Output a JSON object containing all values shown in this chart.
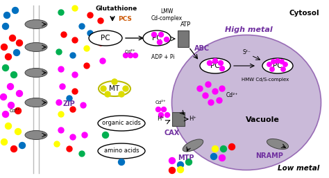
{
  "bg_color": "#f0f0f0",
  "cell_bg": "#ffffff",
  "vacuole_color": "#c5b3d5",
  "cytosol_label": "Cytosol",
  "high_metal_label": "High metal",
  "low_metal_label": "Low metal",
  "vacuole_label": "Vacuole",
  "zip_label": "ZIP",
  "zip_color": "#7030a0",
  "abc_label": "ABC",
  "abc_color": "#7030a0",
  "cax_label": "CAX",
  "cax_color": "#7030a0",
  "mtp_label": "MTP",
  "mtp_color": "#7030a0",
  "nramp_label": "NRAMP",
  "nramp_color": "#7030a0",
  "pcs_label": "PCS",
  "pcs_color": "#cc5500",
  "glutathione_label": "Glutathione",
  "atp_label": "ATP",
  "adppi_label": "ADP + Pi",
  "lmw_label": "LMW\nCd-complex",
  "hmw_label": "HMW Cd/S-complex",
  "s2_label": "S²⁻",
  "cd2_label": "Cd²⁺",
  "hplus_label": "H⁺",
  "hplus2_label": "H⁺",
  "organic_acids_label": "organic acids",
  "amino_acids_label": "amino acids",
  "mt_label": "MT",
  "pc_label": "PC",
  "transporter_color": "#707070",
  "membrane_color": "#999999",
  "outside_dots": [
    [
      10,
      22,
      "#0070c0"
    ],
    [
      22,
      15,
      "#0070c0"
    ],
    [
      8,
      38,
      "#0070c0"
    ],
    [
      18,
      55,
      "#ff0000"
    ],
    [
      6,
      68,
      "#ff0000"
    ],
    [
      28,
      62,
      "#ff0000"
    ],
    [
      12,
      82,
      "#ff0000"
    ],
    [
      24,
      76,
      "#0070c0"
    ],
    [
      8,
      98,
      "#00b050"
    ],
    [
      20,
      108,
      "#00b050"
    ],
    [
      15,
      125,
      "#ff00ff"
    ],
    [
      5,
      140,
      "#ff00ff"
    ],
    [
      28,
      135,
      "#ff00ff"
    ],
    [
      16,
      152,
      "#ff00ff"
    ],
    [
      8,
      165,
      "#ff00ff"
    ],
    [
      26,
      160,
      "#ff0000"
    ],
    [
      12,
      182,
      "#ffff00"
    ],
    [
      26,
      190,
      "#ffff00"
    ],
    [
      6,
      205,
      "#ffff00"
    ],
    [
      20,
      215,
      "#ff0000"
    ],
    [
      32,
      210,
      "#0070c0"
    ]
  ],
  "inside_dots": [
    [
      88,
      18,
      "#00b050"
    ],
    [
      108,
      12,
      "#ffff00"
    ],
    [
      130,
      22,
      "#ff0000"
    ],
    [
      118,
      38,
      "#0070c0"
    ],
    [
      92,
      50,
      "#ff0000"
    ],
    [
      108,
      58,
      "#ff0000"
    ],
    [
      130,
      48,
      "#0070c0"
    ],
    [
      145,
      30,
      "#ff0000"
    ],
    [
      85,
      75,
      "#00b050"
    ],
    [
      105,
      80,
      "#0070c0"
    ],
    [
      125,
      70,
      "#ffff00"
    ],
    [
      145,
      62,
      "#ff0000"
    ],
    [
      88,
      100,
      "#ff00ff"
    ],
    [
      108,
      108,
      "#ff00ff"
    ],
    [
      125,
      95,
      "#ff0000"
    ],
    [
      148,
      88,
      "#ff00ff"
    ],
    [
      90,
      125,
      "#ff00ff"
    ],
    [
      108,
      132,
      "#ff0000"
    ],
    [
      85,
      148,
      "#ff00ff"
    ],
    [
      100,
      142,
      "#0070c0"
    ],
    [
      88,
      165,
      "#ffff00"
    ],
    [
      105,
      158,
      "#ff0000"
    ],
    [
      120,
      152,
      "#ff00ff"
    ],
    [
      88,
      188,
      "#ff00ff"
    ],
    [
      105,
      198,
      "#ff00ff"
    ],
    [
      122,
      195,
      "#ff00ff"
    ],
    [
      82,
      208,
      "#ffff00"
    ],
    [
      100,
      215,
      "#ff0000"
    ],
    [
      118,
      222,
      "#00b050"
    ]
  ],
  "vacuole_low_dots": [
    [
      310,
      215,
      "#ffff00"
    ],
    [
      322,
      215,
      "#00b050"
    ],
    [
      334,
      212,
      "#ff0000"
    ],
    [
      308,
      226,
      "#0070c0"
    ],
    [
      320,
      228,
      "#ff00ff"
    ]
  ],
  "below_vacuole_dots": [
    [
      248,
      232,
      "#ff00ff"
    ],
    [
      260,
      238,
      "#0070c0"
    ],
    [
      272,
      234,
      "#00b050"
    ],
    [
      248,
      246,
      "#ff0000"
    ],
    [
      260,
      245,
      "#ffff00"
    ]
  ]
}
